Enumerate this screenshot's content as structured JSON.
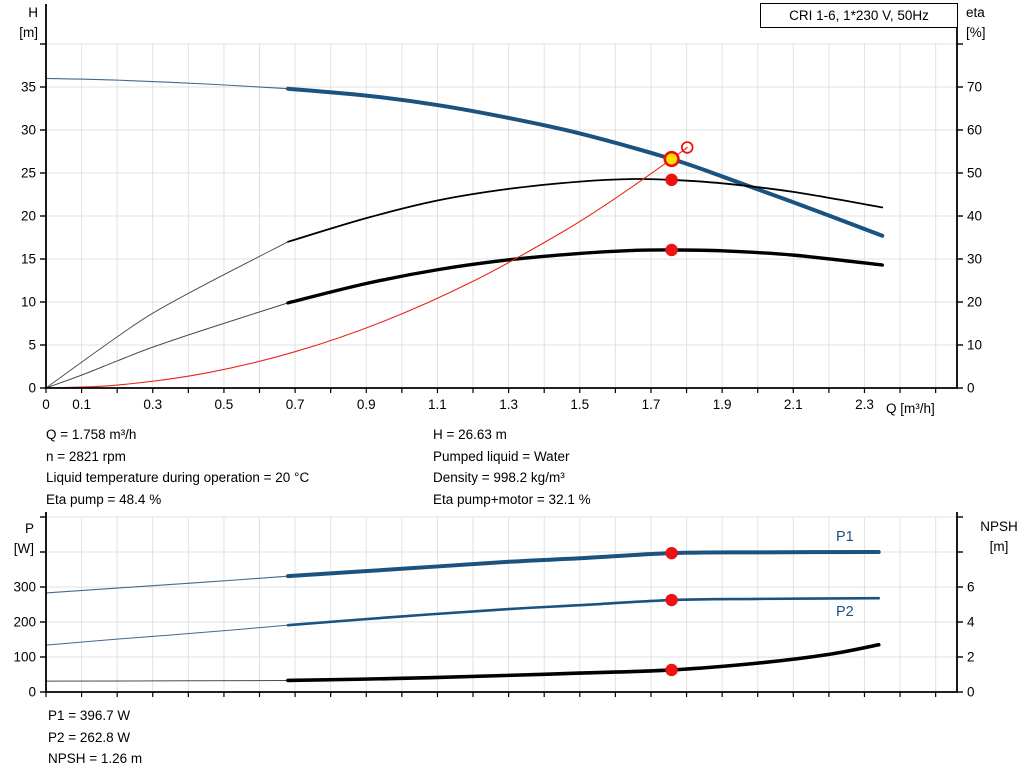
{
  "colors": {
    "blue": "#1a5280",
    "blue_thin": "#44688f",
    "black": "#000000",
    "black_thin": "#4a4a4a",
    "red": "#e8251d",
    "marker_red": "#ee1111",
    "marker_yellow": "#ffdf00",
    "grid": "#e1e1e1",
    "axis": "#000000",
    "label_blue": "#1a5280"
  },
  "annotations": {
    "top_left": [
      "Q = 1.758 m³/h",
      "n = 2821 rpm",
      "Liquid temperature during operation = 20 °C",
      "Eta pump = 48.4 %"
    ],
    "top_right": [
      "H = 26.63 m",
      "Pumped liquid = Water",
      "Density = 998.2 kg/m³",
      "Eta pump+motor = 32.1 %"
    ],
    "bottom": [
      "P1 = 396.7 W",
      "P2 = 262.8 W",
      "NPSH = 1.26 m"
    ]
  },
  "chart_data": [
    {
      "type": "line",
      "title": "CRI 1-6, 1*230 V, 50Hz",
      "x_axis": {
        "label": "Q [m³/h]",
        "min": 0,
        "max": 2.56,
        "tick_step": 0.1,
        "tick_max": 2.5,
        "labeled": [
          0,
          0.1,
          0.3,
          0.5,
          0.7,
          0.9,
          1.1,
          1.3,
          1.5,
          1.7,
          1.9,
          2.1,
          2.3
        ]
      },
      "y_left": {
        "name": "H",
        "unit": "[m]",
        "min": 0,
        "max": 40,
        "step": 5,
        "labeled": [
          0,
          5,
          10,
          15,
          20,
          25,
          30,
          35
        ]
      },
      "y_right": {
        "name": "eta",
        "unit": "[%]",
        "min": 0,
        "max": 80,
        "step": 10,
        "labeled": [
          0,
          10,
          20,
          30,
          40,
          50,
          60,
          70
        ]
      },
      "grid": true,
      "series": [
        {
          "name": "H pump curve (extension)",
          "axis": "left",
          "color": "blue_thin",
          "width": 1.1,
          "points": [
            [
              0,
              36.0
            ],
            [
              0.2,
              35.8
            ],
            [
              0.45,
              35.35
            ],
            [
              0.68,
              34.8
            ]
          ]
        },
        {
          "name": "H pump curve",
          "axis": "left",
          "color": "blue",
          "width": 4,
          "points": [
            [
              0.68,
              34.8
            ],
            [
              0.9,
              34.0
            ],
            [
              1.1,
              32.9
            ],
            [
              1.3,
              31.4
            ],
            [
              1.5,
              29.6
            ],
            [
              1.758,
              26.63
            ],
            [
              1.9,
              24.6
            ],
            [
              2.1,
              21.6
            ],
            [
              2.35,
              17.7
            ]
          ]
        },
        {
          "name": "Eta pump (extension)",
          "axis": "right",
          "color": "black_thin",
          "width": 0.9,
          "points": [
            [
              0,
              0
            ],
            [
              0.1,
              6.0
            ],
            [
              0.2,
              11.9
            ],
            [
              0.3,
              17.4
            ],
            [
              0.45,
              24.2
            ],
            [
              0.68,
              34.0
            ]
          ]
        },
        {
          "name": "Eta pump",
          "axis": "right",
          "color": "black",
          "width": 1.8,
          "points": [
            [
              0.68,
              34.0
            ],
            [
              0.9,
              39.5
            ],
            [
              1.1,
              43.6
            ],
            [
              1.3,
              46.3
            ],
            [
              1.5,
              48.0
            ],
            [
              1.65,
              48.6
            ],
            [
              1.758,
              48.4
            ],
            [
              1.9,
              47.6
            ],
            [
              2.1,
              45.6
            ],
            [
              2.35,
              42.0
            ]
          ]
        },
        {
          "name": "Eta pump+motor (extension)",
          "axis": "right",
          "color": "black_thin",
          "width": 1,
          "points": [
            [
              0,
              0
            ],
            [
              0.1,
              3.0
            ],
            [
              0.2,
              6.3
            ],
            [
              0.3,
              9.5
            ],
            [
              0.45,
              13.7
            ],
            [
              0.68,
              19.8
            ]
          ]
        },
        {
          "name": "Eta pump+motor",
          "axis": "right",
          "color": "black",
          "width": 3.4,
          "points": [
            [
              0.68,
              19.8
            ],
            [
              0.9,
              24.3
            ],
            [
              1.1,
              27.5
            ],
            [
              1.3,
              29.8
            ],
            [
              1.5,
              31.3
            ],
            [
              1.65,
              32.0
            ],
            [
              1.758,
              32.1
            ],
            [
              1.9,
              31.9
            ],
            [
              2.1,
              30.9
            ],
            [
              2.35,
              28.6
            ]
          ]
        },
        {
          "name": "System curve",
          "axis": "left",
          "color": "red",
          "width": 1.1,
          "points": [
            [
              0,
              0
            ],
            [
              0.2,
              0.34
            ],
            [
              0.45,
              1.74
            ],
            [
              0.7,
              4.22
            ],
            [
              0.95,
              7.78
            ],
            [
              1.2,
              12.41
            ],
            [
              1.45,
              18.11
            ],
            [
              1.6,
              22.06
            ],
            [
              1.758,
              26.63
            ],
            [
              1.802,
              27.97
            ]
          ]
        }
      ],
      "markers": [
        {
          "kind": "dot",
          "axis": "left",
          "x": 1.758,
          "y": 26.63,
          "r": 6.8,
          "fill": "marker_yellow",
          "stroke": "marker_red",
          "stroke_w": 2.6,
          "label": "duty-point"
        },
        {
          "kind": "ring",
          "axis": "left",
          "x": 1.802,
          "y": 27.97,
          "r": 5.4,
          "stroke": "marker_red",
          "stroke_w": 1.7,
          "label": "rated-point"
        },
        {
          "kind": "dot",
          "axis": "right",
          "x": 1.758,
          "y": 48.4,
          "r": 6.2,
          "fill": "marker_red",
          "label": "eta-pump-point"
        },
        {
          "kind": "dot",
          "axis": "right",
          "x": 1.758,
          "y": 32.1,
          "r": 6.2,
          "fill": "marker_red",
          "label": "eta-pump-motor-point"
        }
      ],
      "inline_labels": []
    },
    {
      "type": "line",
      "title": "",
      "x_axis": {
        "label": "",
        "min": 0,
        "max": 2.56,
        "tick_step": 0.1,
        "tick_max": 2.5,
        "labeled": []
      },
      "y_left": {
        "name": "P",
        "unit": "[W]",
        "min": 0,
        "max": 500,
        "step": 100,
        "labeled": [
          0,
          100,
          200,
          300
        ]
      },
      "y_right": {
        "name": "NPSH",
        "unit": "[m]",
        "min": 0,
        "max": 10,
        "step": 2,
        "labeled": [
          0,
          2,
          4,
          6
        ]
      },
      "grid": true,
      "series": [
        {
          "name": "P1 (extension)",
          "axis": "left",
          "color": "blue_thin",
          "width": 1.1,
          "points": [
            [
              0,
              283
            ],
            [
              0.2,
              297
            ],
            [
              0.45,
              314
            ],
            [
              0.68,
              331
            ]
          ]
        },
        {
          "name": "P1",
          "axis": "left",
          "color": "blue",
          "width": 4,
          "points": [
            [
              0.68,
              331
            ],
            [
              1.0,
              352
            ],
            [
              1.3,
              372
            ],
            [
              1.5,
              382
            ],
            [
              1.758,
              396.7
            ],
            [
              2.0,
              399
            ],
            [
              2.34,
              400
            ]
          ]
        },
        {
          "name": "P2 (extension)",
          "axis": "left",
          "color": "blue_thin",
          "width": 1,
          "points": [
            [
              0,
              134
            ],
            [
              0.2,
              151
            ],
            [
              0.45,
              171
            ],
            [
              0.68,
              191
            ]
          ]
        },
        {
          "name": "P2",
          "axis": "left",
          "color": "blue",
          "width": 2.6,
          "points": [
            [
              0.68,
              191
            ],
            [
              1.0,
              216
            ],
            [
              1.3,
              237
            ],
            [
              1.5,
              248
            ],
            [
              1.758,
              262.8
            ],
            [
              2.0,
              266
            ],
            [
              2.34,
              268
            ]
          ]
        },
        {
          "name": "NPSH (extension)",
          "axis": "right",
          "color": "black_thin",
          "width": 1,
          "points": [
            [
              0,
              0.62
            ],
            [
              0.4,
              0.64
            ],
            [
              0.68,
              0.66
            ]
          ]
        },
        {
          "name": "NPSH",
          "axis": "right",
          "color": "black",
          "width": 3.6,
          "points": [
            [
              0.68,
              0.66
            ],
            [
              1.0,
              0.78
            ],
            [
              1.3,
              0.95
            ],
            [
              1.5,
              1.08
            ],
            [
              1.758,
              1.26
            ],
            [
              2.0,
              1.65
            ],
            [
              2.2,
              2.15
            ],
            [
              2.34,
              2.7
            ]
          ]
        }
      ],
      "markers": [
        {
          "kind": "dot",
          "axis": "left",
          "x": 1.758,
          "y": 396.7,
          "r": 6.2,
          "fill": "marker_red",
          "label": "p1-point"
        },
        {
          "kind": "dot",
          "axis": "left",
          "x": 1.758,
          "y": 262.8,
          "r": 6.2,
          "fill": "marker_red",
          "label": "p2-point"
        },
        {
          "kind": "dot",
          "axis": "right",
          "x": 1.758,
          "y": 1.26,
          "r": 6.2,
          "fill": "marker_red",
          "label": "npsh-point"
        }
      ],
      "inline_labels": [
        {
          "text": "P1",
          "axis": "left",
          "x": 2.245,
          "y": 445
        },
        {
          "text": "P2",
          "axis": "left",
          "x": 2.245,
          "y": 230
        }
      ]
    }
  ]
}
